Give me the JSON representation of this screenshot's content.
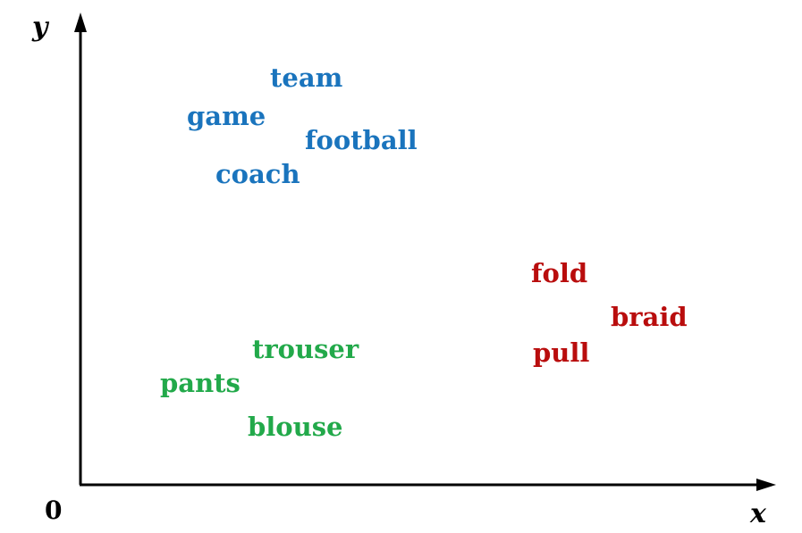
{
  "axes": {
    "y_label": "y",
    "x_label": "x",
    "origin_label": "0"
  },
  "clusters": {
    "sports": {
      "color": "#1a74bd",
      "words": [
        "team",
        "game",
        "football",
        "coach"
      ]
    },
    "hair_actions": {
      "color": "#b90d0d",
      "words": [
        "fold",
        "braid",
        "pull"
      ]
    },
    "clothing": {
      "color": "#22a94a",
      "words": [
        "trouser",
        "pants",
        "blouse"
      ]
    }
  }
}
